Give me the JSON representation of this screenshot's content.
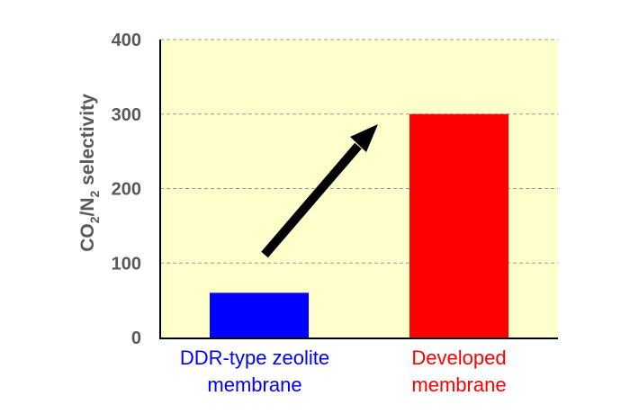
{
  "chart_data": {
    "type": "bar",
    "title": "",
    "xlabel": "",
    "ylabel": {
      "main": "CO",
      "sub1": "2",
      "mid": "/N",
      "sub2": "2",
      "tail": " selectivity"
    },
    "ylim": [
      0,
      400
    ],
    "yticks": [
      "0",
      "100",
      "200",
      "300",
      "400"
    ],
    "grid": true,
    "categories": [
      {
        "line1": "DDR-type zeolite",
        "line2": "membrane",
        "color": "#0000ff"
      },
      {
        "line1": "Developed",
        "line2": "membrane",
        "color": "#ff0000"
      }
    ],
    "values": [
      60,
      300
    ],
    "annotations": [
      {
        "type": "arrow",
        "from": "DDR-type zeolite membrane",
        "to": "Developed membrane",
        "color": "#000000"
      }
    ],
    "background": "#ffffcc"
  }
}
